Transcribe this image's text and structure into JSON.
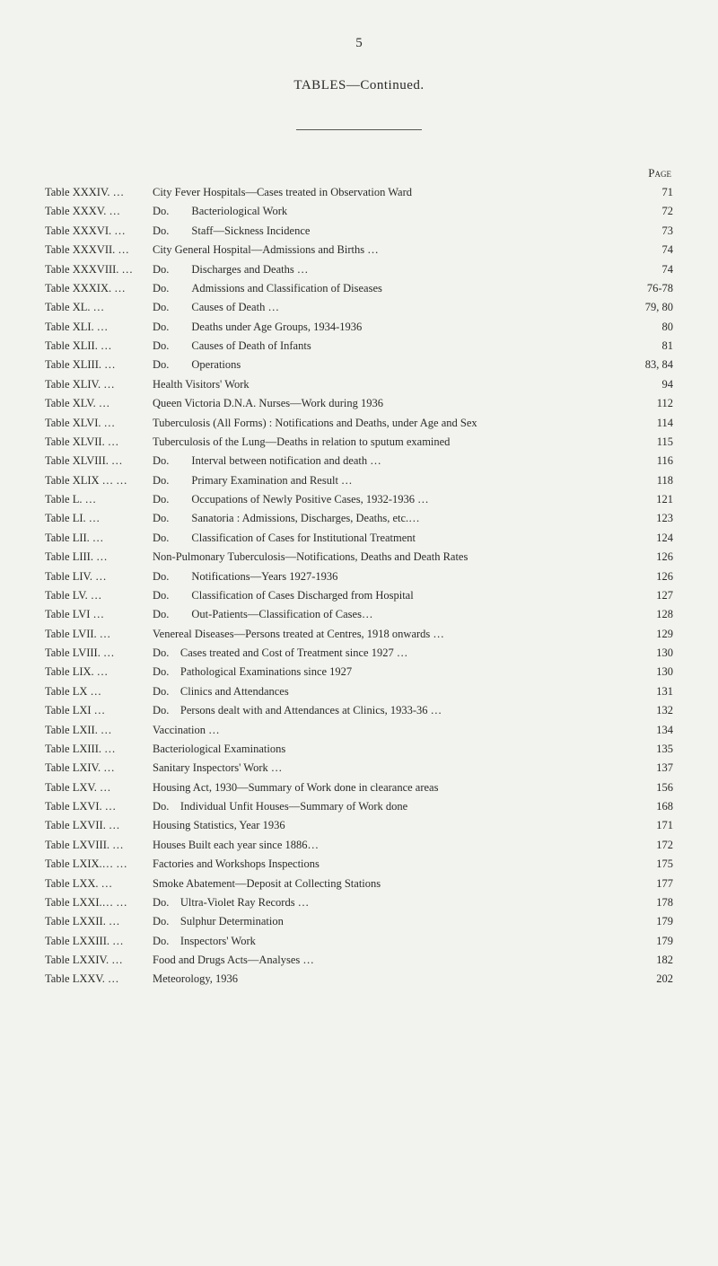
{
  "pageNumber": "5",
  "heading": "TABLES—Continued.",
  "columnHeader": "Page",
  "entries": [
    {
      "table": "Table XXXIV.",
      "desc": "City Fever Hospitals—Cases treated in Observation Ward",
      "page": "71"
    },
    {
      "table": "Table XXXV.",
      "desc": "Do.  Bacteriological Work",
      "page": "72"
    },
    {
      "table": "Table XXXVI.",
      "desc": "Do.  Staff—Sickness Incidence",
      "page": "73"
    },
    {
      "table": "Table XXXVII.",
      "desc": "City General Hospital—Admissions and Births …",
      "page": "74"
    },
    {
      "table": "Table XXXVIII.",
      "desc": "Do.  Discharges and Deaths …",
      "page": "74"
    },
    {
      "table": "Table XXXIX.",
      "desc": "Do.  Admissions and Classification of Diseases",
      "page": "76-78"
    },
    {
      "table": "Table XL.",
      "desc": "Do.  Causes of Death …",
      "page": "79, 80"
    },
    {
      "table": "Table XLI.",
      "desc": "Do.  Deaths under Age Groups, 1934-1936",
      "page": "80"
    },
    {
      "table": "Table XLII.",
      "desc": "Do.  Causes of Death of Infants",
      "page": "81"
    },
    {
      "table": "Table XLIII.",
      "desc": "Do.  Operations",
      "page": "83, 84"
    },
    {
      "table": "Table XLIV.",
      "desc": "Health Visitors' Work",
      "page": "94"
    },
    {
      "table": "Table XLV.",
      "desc": "Queen Victoria D.N.A. Nurses—Work during 1936",
      "page": "112"
    },
    {
      "table": "Table XLVI.",
      "desc": "Tuberculosis (All Forms) : Notifications and Deaths, under Age and Sex",
      "page": "114"
    },
    {
      "table": "Table XLVII.",
      "desc": "Tuberculosis of the Lung—Deaths in relation to sputum examined",
      "page": "115"
    },
    {
      "table": "Table XLVIII.",
      "desc": "Do.  Interval between notification and death …",
      "page": "116"
    },
    {
      "table": "Table XLIX …",
      "desc": "Do.  Primary Examination and Result …",
      "page": "118"
    },
    {
      "table": "Table L.",
      "desc": "Do.  Occupations of Newly Positive Cases, 1932-1936 …",
      "page": "121"
    },
    {
      "table": "Table LI.",
      "desc": "Do.  Sanatoria : Admissions, Discharges, Deaths, etc.…",
      "page": "123"
    },
    {
      "table": "Table LII.",
      "desc": "Do.  Classification of Cases for Institutional Treatment",
      "page": "124"
    },
    {
      "table": "Table LIII.",
      "desc": "Non-Pulmonary Tuberculosis—Notifications, Deaths and Death Rates",
      "page": "126"
    },
    {
      "table": "Table LIV.",
      "desc": "Do.  Notifications—Years 1927-1936",
      "page": "126"
    },
    {
      "table": "Table LV.",
      "desc": "Do.  Classification of Cases Discharged from Hospital",
      "page": "127"
    },
    {
      "table": "Table LVI",
      "desc": "Do.  Out-Patients—Classification of Cases…",
      "page": "128"
    },
    {
      "table": "Table LVII.",
      "desc": "Venereal Diseases—Persons treated at Centres, 1918 onwards …",
      "page": "129"
    },
    {
      "table": "Table LVIII.",
      "desc": "Do. Cases treated and Cost of Treatment since 1927 …",
      "page": "130"
    },
    {
      "table": "Table LIX.",
      "desc": "Do. Pathological Examinations since 1927",
      "page": "130"
    },
    {
      "table": "Table LX",
      "desc": "Do. Clinics and Attendances",
      "page": "131"
    },
    {
      "table": "Table LXI",
      "desc": "Do. Persons dealt with and Attendances at Clinics, 1933-36 …",
      "page": "132"
    },
    {
      "table": "Table LXII.",
      "desc": "Vaccination …",
      "page": "134"
    },
    {
      "table": "Table LXIII.",
      "desc": "Bacteriological Examinations",
      "page": "135"
    },
    {
      "table": "Table LXIV.",
      "desc": "Sanitary Inspectors' Work …",
      "page": "137"
    },
    {
      "table": "Table LXV.",
      "desc": "Housing Act, 1930—Summary of Work done in clearance areas",
      "page": "156"
    },
    {
      "table": "Table LXVI.",
      "desc": "Do. Individual Unfit Houses—Summary of Work done",
      "page": "168"
    },
    {
      "table": "Table LXVII.",
      "desc": "Housing Statistics, Year 1936",
      "page": "171"
    },
    {
      "table": "Table LXVIII.",
      "desc": "Houses Built each year since 1886…",
      "page": "172"
    },
    {
      "table": "Table LXIX.…",
      "desc": "Factories and Workshops Inspections",
      "page": "175"
    },
    {
      "table": "Table LXX.",
      "desc": "Smoke Abatement—Deposit at Collecting Stations",
      "page": "177"
    },
    {
      "table": "Table LXXI.…",
      "desc": "Do. Ultra-Violet Ray Records …",
      "page": "178"
    },
    {
      "table": "Table LXXII.",
      "desc": "Do. Sulphur Determination",
      "page": "179"
    },
    {
      "table": "Table LXXIII.",
      "desc": "Do. Inspectors' Work",
      "page": "179"
    },
    {
      "table": "Table LXXIV.",
      "desc": "Food and Drugs Acts—Analyses …",
      "page": "182"
    },
    {
      "table": "Table LXXV.",
      "desc": "Meteorology, 1936",
      "page": "202"
    }
  ]
}
